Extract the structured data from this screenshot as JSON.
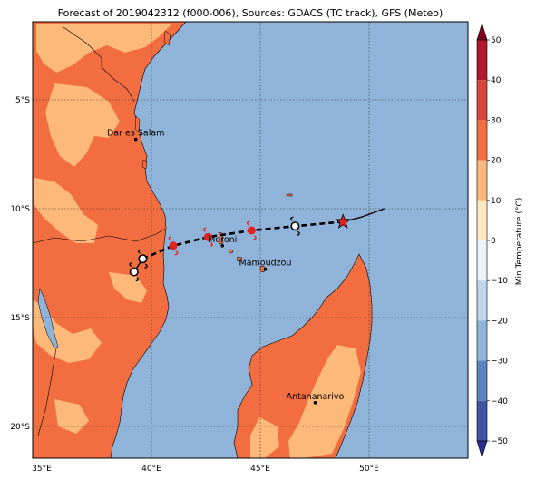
{
  "title": "Forecast of 2019042312 (f000-006), Sources: GDACS (TC track), GFS (Meteo)",
  "colors": {
    "ocean": "#8fb3d9",
    "warm20": "#f26d40",
    "warm10": "#fdb97a",
    "track": "#000000",
    "cyclone_symbol": "#e32220",
    "star": "#e32220"
  },
  "axes": {
    "x_ticks": [
      "35°E",
      "40°E",
      "45°E",
      "50°E"
    ],
    "y_ticks": [
      "5°S",
      "10°S",
      "15°S",
      "20°S"
    ]
  },
  "cities": [
    {
      "name": "Dar es Salam",
      "lon": 39.28,
      "lat": -6.82
    },
    {
      "name": "Moroni",
      "lon": 43.26,
      "lat": -11.7
    },
    {
      "name": "Mamoudzou",
      "lon": 45.23,
      "lat": -12.78
    },
    {
      "name": "Antananarivo",
      "lon": 47.52,
      "lat": -18.91
    }
  ],
  "track": {
    "forecast_solid": [
      [
        50.7,
        -10.0
      ],
      [
        49.6,
        -10.4
      ],
      [
        48.8,
        -10.6
      ]
    ],
    "forecast_dashed": [
      [
        48.8,
        -10.6
      ],
      [
        46.6,
        -10.8
      ],
      [
        44.6,
        -11.0
      ],
      [
        42.6,
        -11.3
      ],
      [
        41.0,
        -11.7
      ],
      [
        39.6,
        -12.3
      ]
    ],
    "tail_solid": [
      [
        39.6,
        -12.3
      ],
      [
        39.2,
        -12.9
      ]
    ],
    "storm_points": [
      {
        "lon": 44.6,
        "lat": -11.0,
        "type": "tropical-storm"
      },
      {
        "lon": 42.6,
        "lat": -11.3,
        "type": "tropical-storm"
      },
      {
        "lon": 41.0,
        "lat": -11.7,
        "type": "tropical-storm"
      },
      {
        "lon": 46.6,
        "lat": -10.8,
        "type": "depression"
      },
      {
        "lon": 39.6,
        "lat": -12.3,
        "type": "depression"
      },
      {
        "lon": 39.2,
        "lat": -12.9,
        "type": "depression"
      }
    ],
    "current_position": {
      "lon": 48.8,
      "lat": -10.6
    }
  },
  "colorbar": {
    "label": "Min Temperature (°C)",
    "ticks": [
      "50",
      "40",
      "30",
      "20",
      "10",
      "0",
      "−10",
      "−20",
      "−30",
      "−40",
      "−50"
    ],
    "colors": [
      "#7f0020",
      "#b2182b",
      "#d6463a",
      "#f26d40",
      "#fdb97a",
      "#fde8c0",
      "#e9f3f8",
      "#bcd7e9",
      "#8fb3d9",
      "#5a83bf",
      "#3e56a4",
      "#2c2f8f"
    ]
  }
}
